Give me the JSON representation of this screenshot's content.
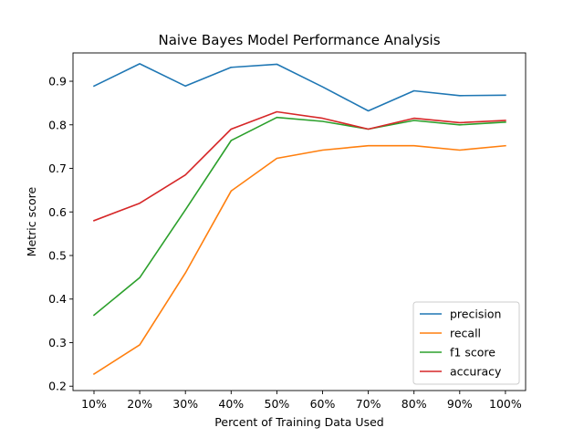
{
  "chart_data": {
    "type": "line",
    "title": "Naive Bayes Model Performance Analysis",
    "xlabel": "Percent of Training Data Used",
    "ylabel": "Metric score",
    "categories": [
      "10%",
      "20%",
      "30%",
      "40%",
      "50%",
      "60%",
      "70%",
      "80%",
      "90%",
      "100%"
    ],
    "yticks": [
      "0.2",
      "0.3",
      "0.4",
      "0.5",
      "0.6",
      "0.7",
      "0.8",
      "0.9"
    ],
    "ylim": [
      0.19,
      0.965
    ],
    "grid": false,
    "legend": "lower-right",
    "series": [
      {
        "name": "precision",
        "color": "#1f77b4",
        "values": [
          0.889,
          0.94,
          0.889,
          0.932,
          0.939,
          0.887,
          0.832,
          0.878,
          0.867,
          0.868
        ]
      },
      {
        "name": "recall",
        "color": "#ff7f0e",
        "values": [
          0.228,
          0.295,
          0.46,
          0.648,
          0.723,
          0.742,
          0.752,
          0.752,
          0.742,
          0.752
        ]
      },
      {
        "name": "f1 score",
        "color": "#2ca02c",
        "values": [
          0.363,
          0.449,
          0.605,
          0.764,
          0.817,
          0.808,
          0.79,
          0.81,
          0.8,
          0.806
        ]
      },
      {
        "name": "accuracy",
        "color": "#d62728",
        "values": [
          0.58,
          0.62,
          0.685,
          0.79,
          0.83,
          0.815,
          0.79,
          0.815,
          0.805,
          0.81
        ]
      }
    ]
  }
}
